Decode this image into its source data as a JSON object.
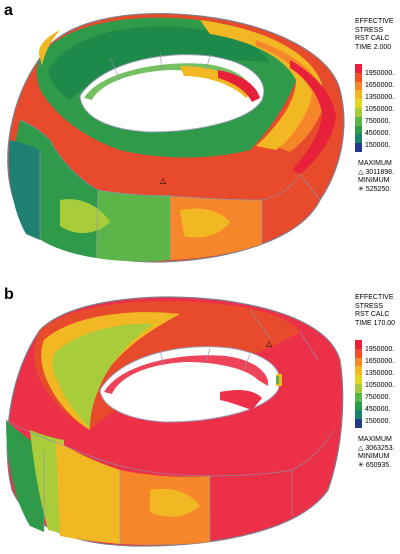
{
  "panels": [
    {
      "letter": "a",
      "legend": {
        "line1": "EFFECTIVE",
        "line2": "STRESS",
        "line3": "RST CALC",
        "line4": "TIME 2.000",
        "ticks": [
          "1950000.",
          "1650000.",
          "1350000.",
          "1050000.",
          "750000.",
          "450000.",
          "150000."
        ],
        "maximum_label": "MAXIMUM",
        "maximum_symbol": "△",
        "maximum_value": "3011898.",
        "minimum_label": "MINIMUM",
        "minimum_symbol": "✳",
        "minimum_value": "525250."
      }
    },
    {
      "letter": "b",
      "legend": {
        "line1": "EFFECTIVE",
        "line2": "STRESS",
        "line3": "RST CALC",
        "line4": "TIME 170.00",
        "ticks": [
          "1950000.",
          "1650000.",
          "1350000.",
          "1050000.",
          "750000.",
          "450000.",
          "150000."
        ],
        "maximum_label": "MAXIMUM",
        "maximum_symbol": "△",
        "maximum_value": "3063253.",
        "minimum_label": "MINIMUM",
        "minimum_symbol": "✳",
        "minimum_value": "650935."
      }
    }
  ],
  "colorscale": [
    "#e8213a",
    "#f2502a",
    "#f6862a",
    "#f2b824",
    "#e4d424",
    "#a8cc3a",
    "#5cb548",
    "#2f9a4a",
    "#1e8070",
    "#213a8a"
  ]
}
